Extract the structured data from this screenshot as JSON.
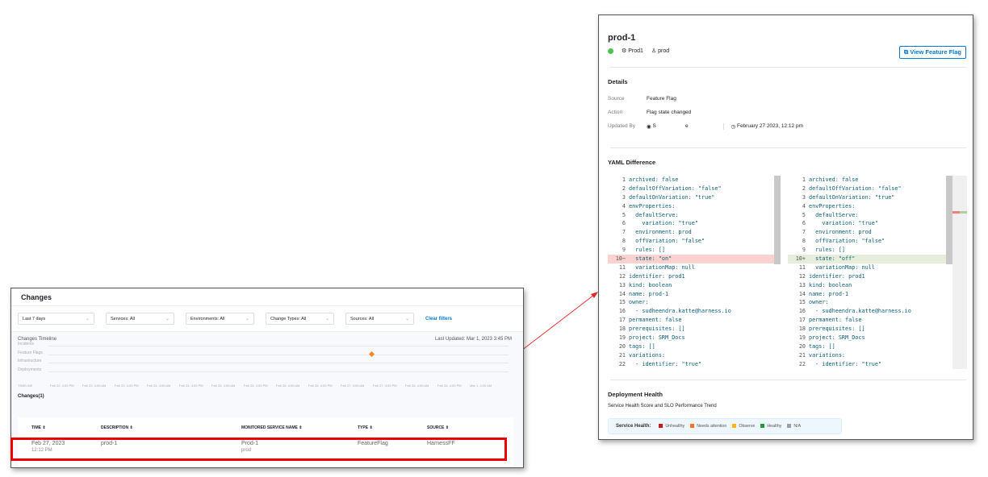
{
  "changes": {
    "title": "Changes",
    "filters": [
      {
        "label": "Last 7 days"
      },
      {
        "label": "Services: All"
      },
      {
        "label": "Environments: All"
      },
      {
        "label": "Change Types: All"
      },
      {
        "label": "Sources: All"
      }
    ],
    "clear_filters": "Clear filters",
    "timeline": {
      "title": "Changes Timeline",
      "last_updated": "Last Updated: Mar 1, 2023 3:45 PM",
      "rows": [
        "Incidents",
        "Feature Flags",
        "Infrastructure",
        "Deployments"
      ],
      "axis_label": "TIMELINE",
      "ticks": [
        "Feb 22, 4:00 PM",
        "Feb 23, 4:00 AM",
        "Feb 23, 4:00 PM",
        "Feb 24, 4:00 AM",
        "Feb 24, 4:00 PM",
        "Feb 25, 4:00 AM",
        "Feb 25, 4:00 PM",
        "Feb 26, 4:00 AM",
        "Feb 26, 4:00 PM",
        "Feb 27, 4:00 AM",
        "Feb 27, 4:00 PM",
        "Feb 28, 4:00 AM",
        "Feb 28, 4:00 PM",
        "Mar 1, 4:00 AM"
      ],
      "event_color": "#f28a1f"
    },
    "count_label": "Changes(1)",
    "columns": [
      "TIME",
      "DESCRIPTION",
      "MONITORED SERVICE NAME",
      "TYPE",
      "SOURCE"
    ],
    "rows": [
      {
        "date": "Feb 27, 2023",
        "time": "12:12 PM",
        "description": "prod-1",
        "service": "Prod-1",
        "service_env": "prod",
        "type": "FeatureFlag",
        "source": "HarnessFF"
      }
    ]
  },
  "detail": {
    "title": "prod-1",
    "status_color": "#4dc352",
    "service": "Prod1",
    "environment": "prod",
    "view_button": "View Feature Flag",
    "details_heading": "Details",
    "source_label": "Source",
    "source_value": "Feature Flag",
    "action_label": "Action",
    "action_value": "Flag state changed",
    "updated_by_label": "Updated By",
    "updated_by_value": "S                    e",
    "updated_at": "February 27 2023, 12:12 pm",
    "yaml_heading": "YAML Difference",
    "yaml_left": [
      "archived: false",
      "defaultOffVariation: \"false\"",
      "defaultOnVariation: \"true\"",
      "envProperties:",
      "  defaultServe:",
      "    variation: \"true\"",
      "  environment: prod",
      "  offVariation: \"false\"",
      "  rules: []",
      "  state: \"on\"",
      "  variationMap: null",
      "identifier: prod1",
      "kind: boolean",
      "name: prod-1",
      "owner:",
      "  - sudheendra.katte@harness.io",
      "permanent: false",
      "prerequisites: []",
      "project: SRM_Docs",
      "tags: []",
      "variations:",
      "  - identifier: \"true\""
    ],
    "yaml_right": [
      "archived: false",
      "defaultOffVariation: \"false\"",
      "defaultOnVariation: \"true\"",
      "envProperties:",
      "  defaultServe:",
      "    variation: \"true\"",
      "  environment: prod",
      "  offVariation: \"false\"",
      "  rules: []",
      "  state: \"off\"",
      "  variationMap: null",
      "identifier: prod1",
      "kind: boolean",
      "name: prod-1",
      "owner:",
      "  - sudheendra.katte@harness.io",
      "permanent: false",
      "prerequisites: []",
      "project: SRM_Docs",
      "tags: []",
      "variations:",
      "  - identifier: \"true\""
    ],
    "changed_line": 10,
    "health_heading": "Deployment Health",
    "health_sub": "Service Health Score and SLO Performance Trend",
    "legend_label": "Service Health:",
    "legend": [
      {
        "label": "Unhealthy",
        "color": "#c41a1a"
      },
      {
        "label": "Needs attention",
        "color": "#ff7020"
      },
      {
        "label": "Observe",
        "color": "#fcb519"
      },
      {
        "label": "Healthy",
        "color": "#1e9e36"
      },
      {
        "label": "N/A",
        "color": "#9c9cb0"
      }
    ]
  }
}
